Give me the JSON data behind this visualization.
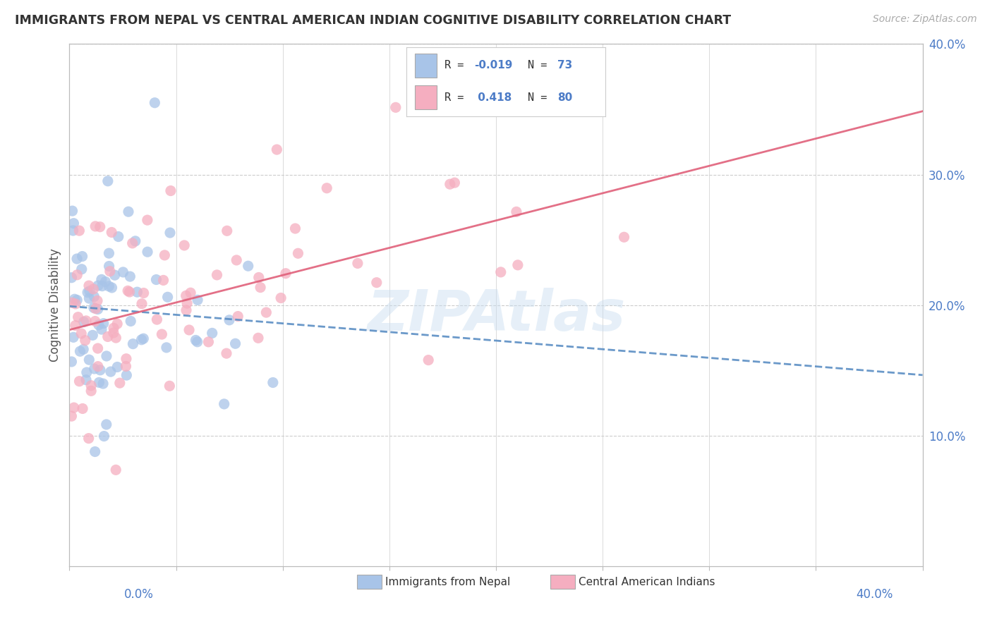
{
  "title": "IMMIGRANTS FROM NEPAL VS CENTRAL AMERICAN INDIAN COGNITIVE DISABILITY CORRELATION CHART",
  "source": "Source: ZipAtlas.com",
  "ylabel": "Cognitive Disability",
  "watermark": "ZIPAtlas",
  "series": [
    {
      "name": "Immigrants from Nepal",
      "R": -0.019,
      "N": 73,
      "color": "#a8c4e8",
      "line_color": "#5b8ec4",
      "line_style": "--"
    },
    {
      "name": "Central American Indians",
      "R": 0.418,
      "N": 80,
      "color": "#f5aec0",
      "line_color": "#e0607a",
      "line_style": "-"
    }
  ],
  "xlim": [
    0.0,
    0.4
  ],
  "ylim": [
    0.0,
    0.4
  ],
  "right_yticks": [
    0.1,
    0.2,
    0.3,
    0.4
  ],
  "right_yticklabels": [
    "10.0%",
    "20.0%",
    "30.0%",
    "40.0%"
  ],
  "x_endpoint_labels": [
    "0.0%",
    "40.0%"
  ],
  "background_color": "#ffffff",
  "grid_color": "#cccccc",
  "title_color": "#333333",
  "axis_label_color": "#555555",
  "tick_color": "#4d7cc7",
  "legend_r_color": "#4d7cc7",
  "legend_label_color": "#333333"
}
